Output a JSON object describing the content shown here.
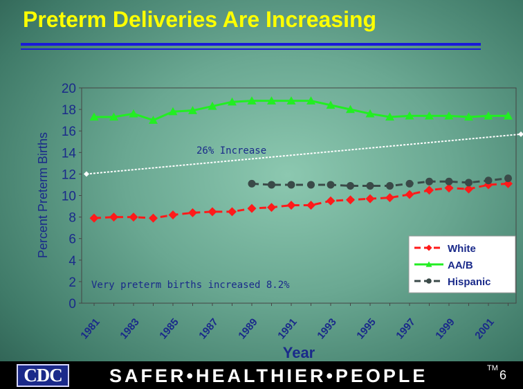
{
  "slide": {
    "title": "Preterm Deliveries Are Increasing",
    "page_number": "6",
    "footer_slogan": "SAFER•HEALTHIER•PEOPLE",
    "trademark": "TM",
    "logo_text": "CDC"
  },
  "chart_data": {
    "type": "line",
    "title": "",
    "xlabel": "Year",
    "ylabel": "Percent Preterm Births",
    "ylim": [
      0,
      20
    ],
    "yticks": [
      0,
      2,
      4,
      6,
      8,
      10,
      12,
      14,
      16,
      18,
      20
    ],
    "xlim": [
      1981,
      2003
    ],
    "x": [
      1981,
      1982,
      1983,
      1984,
      1985,
      1986,
      1987,
      1988,
      1989,
      1990,
      1991,
      1992,
      1993,
      1994,
      1995,
      1996,
      1997,
      1998,
      1999,
      2000,
      2001,
      2002
    ],
    "xtick_labels": [
      "1981",
      "1983",
      "1985",
      "1987",
      "1989",
      "1991",
      "1993",
      "1995",
      "1997",
      "1999",
      "2001"
    ],
    "xtick_values": [
      1981,
      1983,
      1985,
      1987,
      1989,
      1991,
      1993,
      1995,
      1997,
      1999,
      2001
    ],
    "legend_position": "bottom-right",
    "series": [
      {
        "name": "White",
        "color": "#ff1a1a",
        "marker": "diamond",
        "line": "dashed",
        "x": [
          1981,
          1982,
          1983,
          1984,
          1985,
          1986,
          1987,
          1988,
          1989,
          1990,
          1991,
          1992,
          1993,
          1994,
          1995,
          1996,
          1997,
          1998,
          1999,
          2000,
          2001,
          2002
        ],
        "values": [
          7.9,
          8.0,
          8.0,
          7.9,
          8.2,
          8.4,
          8.5,
          8.5,
          8.8,
          8.9,
          9.1,
          9.1,
          9.5,
          9.6,
          9.7,
          9.8,
          10.1,
          10.5,
          10.7,
          10.6,
          11.0,
          11.1
        ]
      },
      {
        "name": "AA/B",
        "color": "#22ee22",
        "marker": "triangle",
        "line": "solid",
        "x": [
          1981,
          1982,
          1983,
          1984,
          1985,
          1986,
          1987,
          1988,
          1989,
          1990,
          1991,
          1992,
          1993,
          1994,
          1995,
          1996,
          1997,
          1998,
          1999,
          2000,
          2001,
          2002
        ],
        "values": [
          17.3,
          17.3,
          17.6,
          17.0,
          17.8,
          17.9,
          18.3,
          18.7,
          18.8,
          18.8,
          18.8,
          18.8,
          18.4,
          18.0,
          17.6,
          17.3,
          17.4,
          17.4,
          17.4,
          17.3,
          17.4,
          17.4
        ]
      },
      {
        "name": "Hispanic",
        "color": "#3a4a48",
        "marker": "circle",
        "line": "dashed",
        "x": [
          1989,
          1990,
          1991,
          1992,
          1993,
          1994,
          1995,
          1996,
          1997,
          1998,
          1999,
          2000,
          2001,
          2002
        ],
        "values": [
          11.1,
          11.0,
          11.0,
          11.0,
          11.0,
          10.9,
          10.9,
          10.9,
          11.1,
          11.3,
          11.3,
          11.2,
          11.4,
          11.6
        ]
      }
    ],
    "trend_line": {
      "x": [
        1981,
        2003
      ],
      "values": [
        12.0,
        15.7
      ],
      "color": "#ffffff"
    },
    "annotations": [
      {
        "text": "26% Increase",
        "x": 1988.5,
        "y": 14.3
      },
      {
        "text": "Very preterm births increased 8.2%",
        "x": 1981,
        "y": 1.6
      }
    ]
  }
}
